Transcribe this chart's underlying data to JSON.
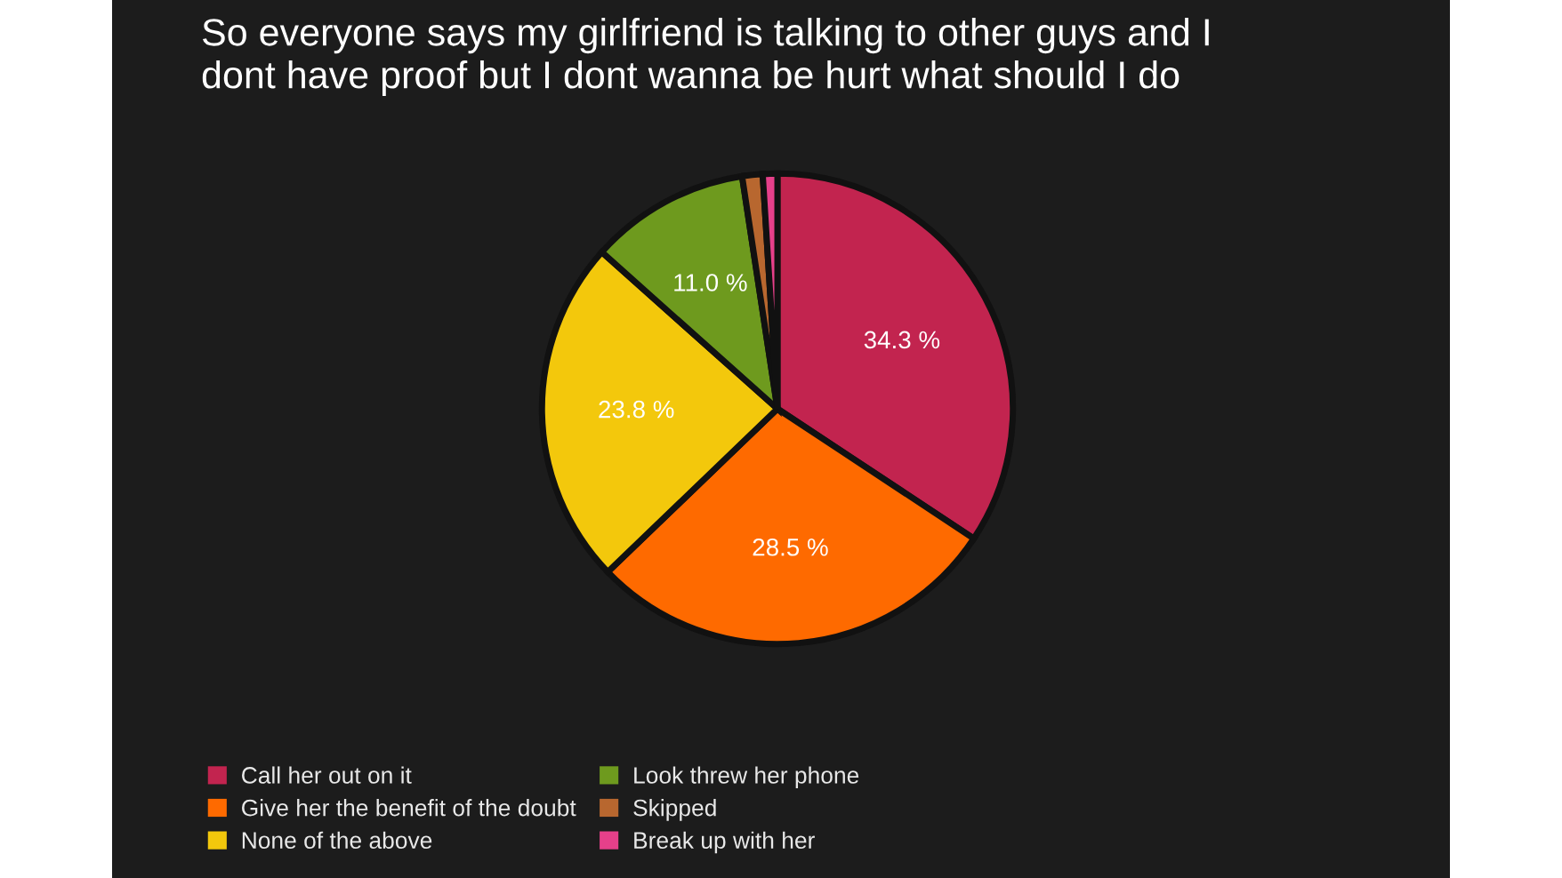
{
  "chart_data": {
    "type": "pie",
    "title": "So everyone says my girlfriend is talking to other guys and I\ndont have proof but I dont wanna be hurt what should I do",
    "categories": [
      "Call her out on it",
      "Give her the benefit of the doubt",
      "None of the above",
      "Look threw her phone",
      "Skipped",
      "Break up with her"
    ],
    "values": [
      34.3,
      28.5,
      23.8,
      11.0,
      1.4,
      1.0
    ],
    "value_labels": [
      "34.3 %",
      "28.5 %",
      "23.8 %",
      "11.0 %",
      null,
      null
    ],
    "colors": [
      "#c2244f",
      "#fe6a00",
      "#f3c80c",
      "#6e9a1e",
      "#b8672f",
      "#e6408a"
    ],
    "legend": "bottom left"
  }
}
